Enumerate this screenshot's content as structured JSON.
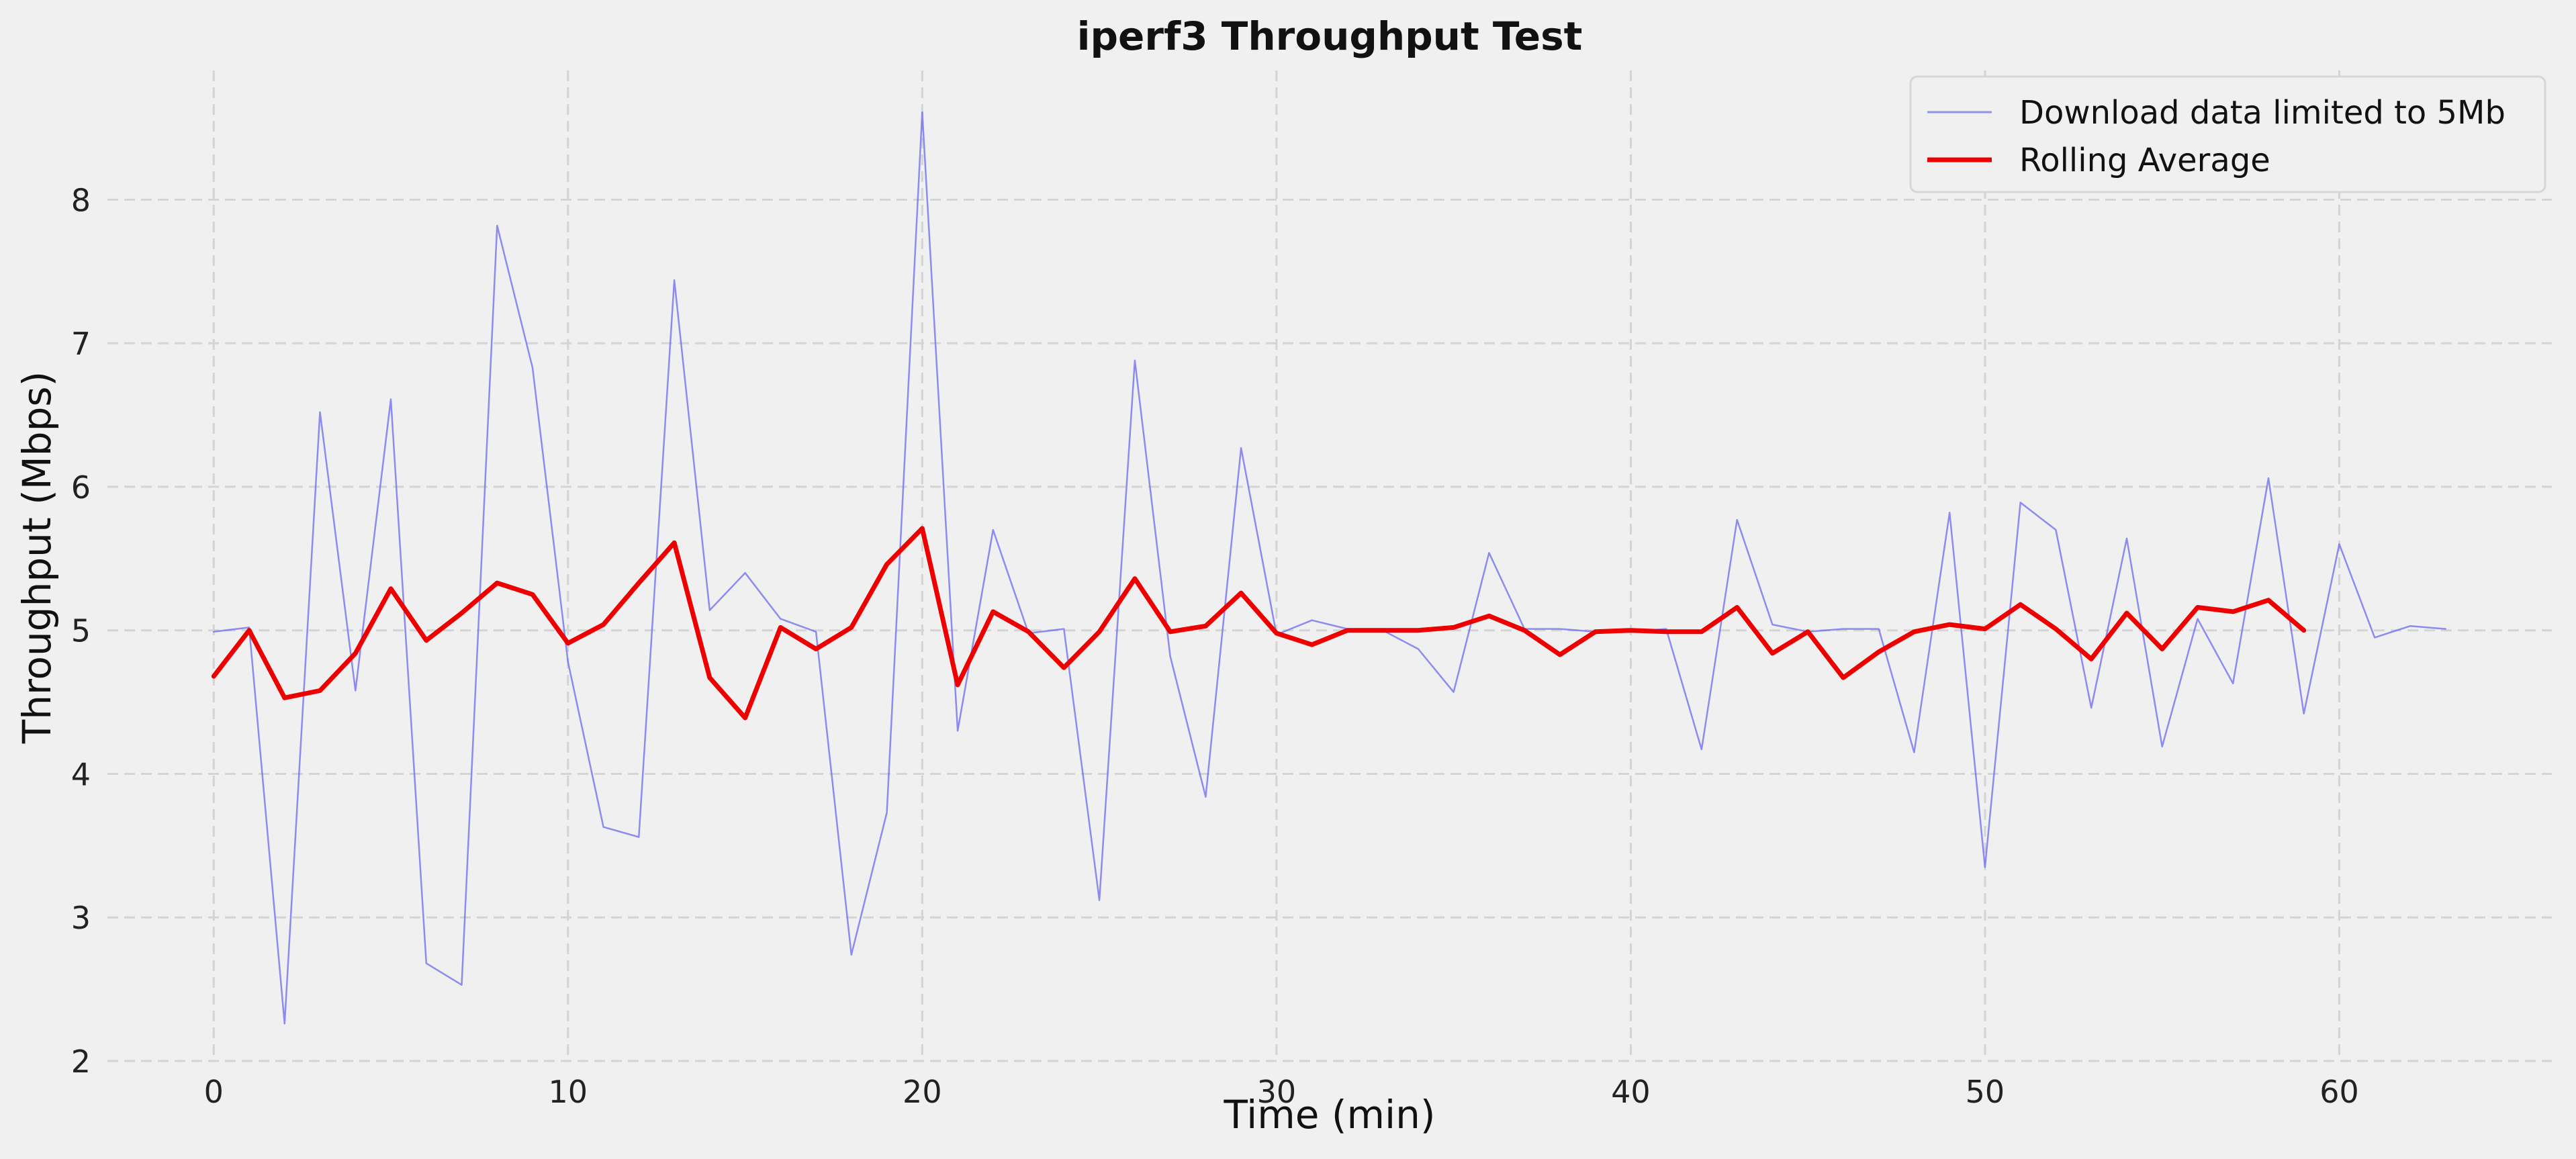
{
  "chart_data": {
    "type": "line",
    "title": "iperf3 Throughput Test",
    "xlabel": "Time (min)",
    "ylabel": "Throughput (Mbps)",
    "xlim": [
      -3,
      66
    ],
    "ylim": [
      2,
      8.9
    ],
    "xticks": [
      0,
      10,
      20,
      30,
      40,
      50,
      60
    ],
    "yticks": [
      2,
      3,
      4,
      5,
      6,
      7,
      8
    ],
    "grid": true,
    "legend_position": "top-right",
    "series": [
      {
        "name": "Download data limited to 5Mb",
        "color": "#6a6af0",
        "x": [
          0,
          1,
          2,
          3,
          4,
          5,
          6,
          7,
          8,
          9,
          10,
          11,
          12,
          13,
          14,
          15,
          16,
          17,
          18,
          19,
          20,
          21,
          22,
          23,
          24,
          25,
          26,
          27,
          28,
          29,
          30,
          31,
          32,
          33,
          34,
          35,
          36,
          37,
          38,
          39,
          40,
          41,
          42,
          43,
          44,
          45,
          46,
          47,
          48,
          49,
          50,
          51,
          52,
          53,
          54,
          55,
          56,
          57,
          58,
          59,
          60,
          61,
          62,
          63
        ],
        "values": [
          4.99,
          5.02,
          2.26,
          6.52,
          4.58,
          6.61,
          2.68,
          2.53,
          7.82,
          6.83,
          4.78,
          3.63,
          3.56,
          7.44,
          5.14,
          5.4,
          5.08,
          4.99,
          2.74,
          3.73,
          8.61,
          4.3,
          5.7,
          4.98,
          5.01,
          3.12,
          6.88,
          4.82,
          3.84,
          6.27,
          4.97,
          5.07,
          5.01,
          5.0,
          4.87,
          4.57,
          5.54,
          5.01,
          5.01,
          4.99,
          4.99,
          5.01,
          4.17,
          5.77,
          5.04,
          4.99,
          5.01,
          5.01,
          4.15,
          5.82,
          3.35,
          5.89,
          5.7,
          4.46,
          5.64,
          4.19,
          5.08,
          4.63,
          6.06,
          4.42,
          5.6,
          4.95,
          5.03,
          5.01
        ]
      },
      {
        "name": "Rolling Average",
        "color": "#ee0000",
        "x": [
          0,
          1,
          2,
          3,
          4,
          5,
          6,
          7,
          8,
          9,
          10,
          11,
          12,
          13,
          14,
          15,
          16,
          17,
          18,
          19,
          20,
          21,
          22,
          23,
          24,
          25,
          26,
          27,
          28,
          29,
          30,
          31,
          32,
          33,
          34,
          35,
          36,
          37,
          38,
          39,
          40,
          41,
          42,
          43,
          44,
          45,
          46,
          47,
          48,
          49,
          50,
          51,
          52,
          53,
          54,
          55,
          56,
          57,
          58,
          59
        ],
        "values": [
          4.68,
          5.0,
          4.53,
          4.58,
          4.84,
          5.29,
          4.93,
          5.12,
          5.33,
          5.25,
          4.91,
          5.04,
          5.33,
          5.61,
          4.67,
          4.39,
          5.02,
          4.87,
          5.02,
          5.46,
          5.71,
          4.62,
          5.13,
          4.99,
          4.74,
          4.99,
          5.36,
          4.99,
          5.03,
          5.26,
          4.98,
          4.9,
          5.0,
          5.0,
          5.0,
          5.02,
          5.1,
          5.0,
          4.83,
          4.99,
          5.0,
          4.99,
          4.99,
          5.16,
          4.84,
          4.99,
          4.67,
          4.85,
          4.99,
          5.04,
          5.01,
          5.18,
          5.01,
          4.8,
          5.12,
          4.87,
          5.16,
          5.13,
          5.21,
          5.0
        ]
      }
    ]
  }
}
